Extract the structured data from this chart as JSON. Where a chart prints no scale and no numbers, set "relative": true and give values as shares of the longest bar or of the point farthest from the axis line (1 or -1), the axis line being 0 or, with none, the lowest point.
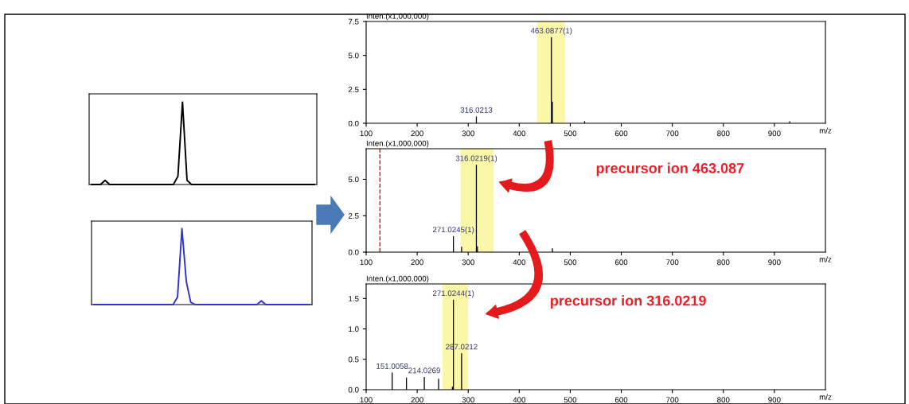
{
  "chart_data": [
    {
      "type": "line",
      "relative": true,
      "categories": [
        null,
        null,
        null,
        null,
        null,
        null,
        null,
        null,
        null,
        null,
        null,
        null,
        null,
        null,
        null,
        null,
        null,
        null,
        null,
        null,
        null,
        null,
        null,
        null,
        null,
        null,
        null,
        null,
        null,
        null,
        null,
        null,
        null,
        null,
        null,
        null,
        null,
        null,
        null,
        null,
        null,
        null,
        null,
        null,
        null,
        null,
        null,
        null,
        null,
        null
      ],
      "series": [
        {
          "color": "#000000",
          "values": [
            0,
            0,
            0,
            0.05,
            0,
            0,
            0,
            0,
            0,
            0,
            0,
            0,
            0,
            0,
            0,
            0,
            0,
            0,
            0,
            0.1,
            1.0,
            0.05,
            0,
            0,
            0,
            0,
            0,
            0,
            0,
            0,
            0,
            0,
            0,
            0,
            0,
            0,
            0,
            0,
            0,
            0,
            0,
            0,
            0,
            0,
            0,
            0,
            0,
            0,
            0,
            0
          ]
        }
      ]
    },
    {
      "type": "line",
      "relative": true,
      "categories": [
        null,
        null,
        null,
        null,
        null,
        null,
        null,
        null,
        null,
        null,
        null,
        null,
        null,
        null,
        null,
        null,
        null,
        null,
        null,
        null,
        null,
        null,
        null,
        null,
        null,
        null,
        null,
        null,
        null,
        null,
        null,
        null,
        null,
        null,
        null,
        null,
        null,
        null,
        null,
        null,
        null,
        null,
        null,
        null,
        null,
        null,
        null,
        null,
        null,
        null
      ],
      "series": [
        {
          "color": "#3333cc",
          "values": [
            0,
            0,
            0,
            0,
            0,
            0,
            0,
            0,
            0,
            0,
            0,
            0,
            0,
            0,
            0,
            0,
            0,
            0,
            0,
            0.1,
            1.0,
            0.3,
            0.03,
            0,
            0,
            0,
            0,
            0,
            0,
            0,
            0,
            0,
            0,
            0,
            0,
            0,
            0,
            0,
            0.05,
            0,
            0,
            0,
            0,
            0,
            0,
            0,
            0,
            0,
            0,
            0
          ]
        }
      ]
    },
    {
      "type": "bar",
      "xlabel": "m/z",
      "ylabel": "Inten.(x1,000,000)",
      "xlim": [
        100,
        1000
      ],
      "ylim": [
        0,
        7.5
      ],
      "xticks": [
        100,
        200,
        300,
        400,
        500,
        600,
        700,
        800,
        900
      ],
      "yticks": [
        {
          "value": 0,
          "label": "0.0"
        },
        {
          "value": 2.5,
          "label": "2.5"
        },
        {
          "value": 5,
          "label": "5.0"
        },
        {
          "value": 7.5,
          "label": "7.5"
        }
      ],
      "series": [
        {
          "color": "#000000",
          "x": [
            316,
            463,
            465,
            528,
            930
          ],
          "values": [
            0.5,
            6.35,
            1.6,
            0.15,
            0.15
          ]
        }
      ],
      "bands": [
        {
          "axis": "x",
          "from": 435,
          "to": 490,
          "color": "#fbf7a8"
        }
      ],
      "annotations": [
        {
          "text": "463.0877(1)",
          "x": 463,
          "y": 6.35
        },
        {
          "text": "316.0213",
          "x": 316,
          "y": 0.5
        }
      ]
    },
    {
      "type": "bar",
      "xlabel": "m/z",
      "ylabel": "Inten.(x1,000,000)",
      "xlim": [
        100,
        1000
      ],
      "ylim": [
        0,
        7.1
      ],
      "xticks": [
        100,
        200,
        300,
        400,
        500,
        600,
        700,
        800,
        900
      ],
      "yticks": [
        {
          "value": 0,
          "label": "0.0"
        },
        {
          "value": 2.5,
          "label": "2.5"
        },
        {
          "value": 5,
          "label": "5.0"
        }
      ],
      "series": [
        {
          "color": "#000000",
          "x": [
            271,
            287,
            316,
            318,
            465
          ],
          "values": [
            1.1,
            0.37,
            6.0,
            0.4,
            0.26
          ]
        }
      ],
      "bands": [
        {
          "axis": "x",
          "from": 285,
          "to": 350,
          "color": "#fbf7a8"
        }
      ],
      "ref_lines": [
        {
          "axis": "x",
          "value": 127,
          "color": "#ff0000",
          "line_style": "dashed"
        }
      ],
      "annotations": [
        {
          "text": "316.0219(1)",
          "x": 316,
          "y": 6.0
        },
        {
          "text": "271.0245(1)",
          "x": 271,
          "y": 1.1
        },
        "precursor ion 463.087"
      ]
    },
    {
      "type": "bar",
      "xlabel": "m/z",
      "ylabel": "Inten.(x1,000,000)",
      "xlim": [
        100,
        1000
      ],
      "ylim": [
        0,
        1.74
      ],
      "xticks": [
        100,
        200,
        300,
        400,
        500,
        600,
        700,
        800,
        900
      ],
      "yticks": [
        {
          "value": 0,
          "label": "0.0"
        },
        {
          "value": 0.5,
          "label": "0.5"
        },
        {
          "value": 1.0,
          "label": "1.0"
        },
        {
          "value": 1.5,
          "label": "1.5"
        }
      ],
      "series": [
        {
          "color": "#000000",
          "x": [
            151,
            179,
            214,
            242,
            269,
            271,
            287
          ],
          "values": [
            0.28,
            0.2,
            0.21,
            0.18,
            0.05,
            1.48,
            0.6
          ]
        }
      ],
      "bands": [
        {
          "axis": "x",
          "from": 250,
          "to": 300,
          "color": "#fbf7a8"
        }
      ],
      "annotations": [
        {
          "text": "271.0244(1)",
          "x": 271,
          "y": 1.48
        },
        {
          "text": "287.0212",
          "x": 287,
          "y": 0.6
        },
        {
          "text": "151.0058",
          "x": 151,
          "y": 0.28
        },
        {
          "text": "214.0269",
          "x": 214,
          "y": 0.21
        },
        "precursor ion 316.0219"
      ]
    }
  ]
}
